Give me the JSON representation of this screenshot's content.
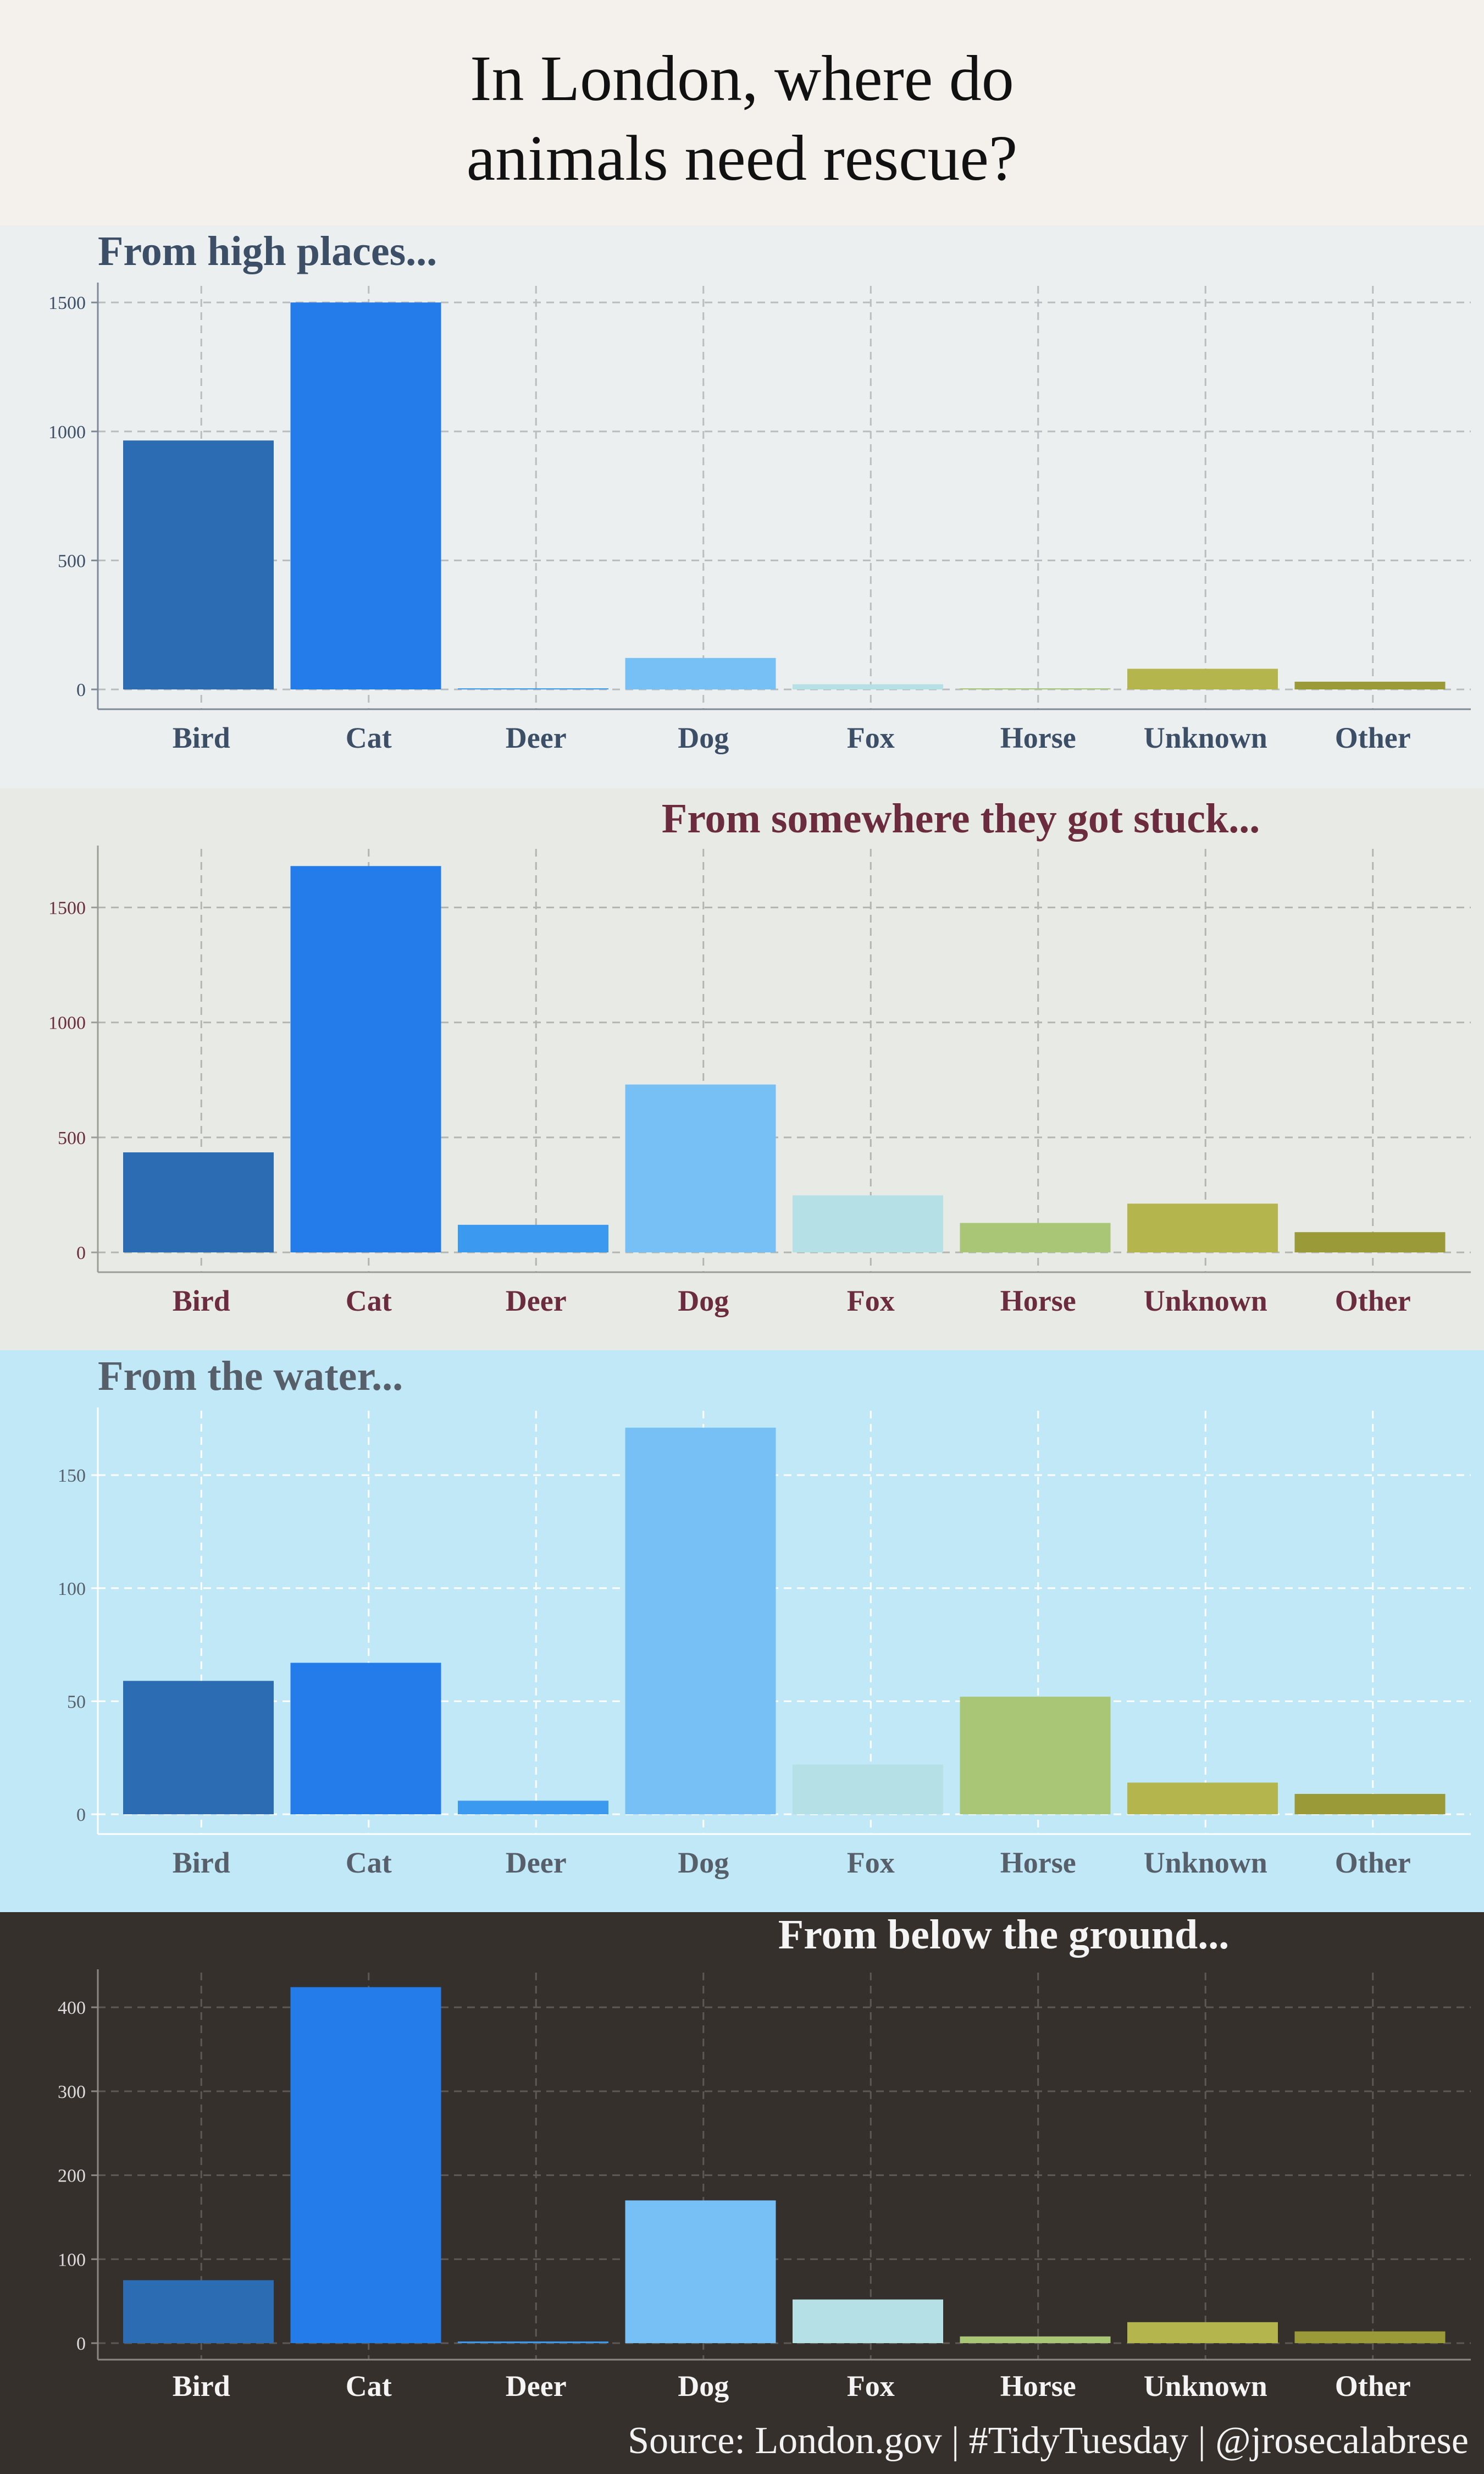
{
  "title": {
    "line1": "In London, where do",
    "line2": "animals need rescue?"
  },
  "source": "Source: London.gov  |  #TidyTuesday  |  @jrosecalabrese",
  "colors": {
    "categories": [
      "#2b6cb2",
      "#247cea",
      "#3b9af0",
      "#76c0f5",
      "#b5e0e6",
      "#a9c676",
      "#b5b54e",
      "#9a9a38"
    ]
  },
  "chart_data": [
    {
      "type": "bar",
      "title": "From high places...",
      "categories": [
        "Bird",
        "Cat",
        "Deer",
        "Dog",
        "Fox",
        "Horse",
        "Unknown",
        "Other"
      ],
      "values": [
        965,
        1500,
        0,
        122,
        20,
        4,
        80,
        30
      ],
      "ylim": [
        0,
        1560
      ],
      "yticks": [
        0,
        500,
        1000,
        1500
      ],
      "grid": true
    },
    {
      "type": "bar",
      "title": "From somewhere they got stuck...",
      "categories": [
        "Bird",
        "Cat",
        "Deer",
        "Dog",
        "Fox",
        "Horse",
        "Unknown",
        "Other"
      ],
      "values": [
        435,
        1680,
        120,
        730,
        248,
        128,
        212,
        88
      ],
      "ylim": [
        0,
        1750
      ],
      "yticks": [
        0,
        500,
        1000,
        1500
      ],
      "grid": true
    },
    {
      "type": "bar",
      "title": "From the water...",
      "categories": [
        "Bird",
        "Cat",
        "Deer",
        "Dog",
        "Fox",
        "Horse",
        "Unknown",
        "Other"
      ],
      "values": [
        59,
        67,
        6,
        171,
        22,
        52,
        14,
        9
      ],
      "ylim": [
        0,
        178
      ],
      "yticks": [
        0,
        50,
        100,
        150
      ],
      "grid": true
    },
    {
      "type": "bar",
      "title": "From below the ground...",
      "categories": [
        "Bird",
        "Cat",
        "Deer",
        "Dog",
        "Fox",
        "Horse",
        "Unknown",
        "Other"
      ],
      "values": [
        75,
        424,
        2,
        170,
        52,
        8,
        25,
        14
      ],
      "ylim": [
        0,
        440
      ],
      "yticks": [
        0,
        100,
        200,
        300,
        400
      ],
      "grid": true
    }
  ]
}
